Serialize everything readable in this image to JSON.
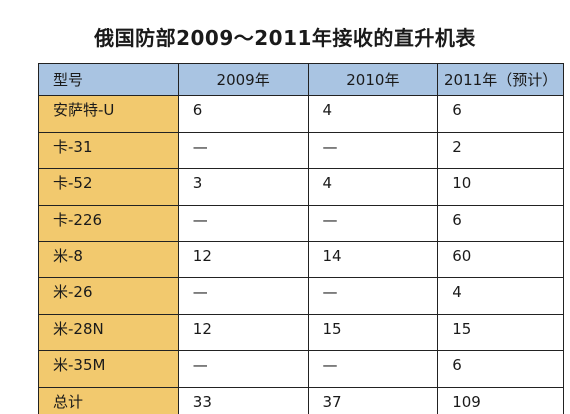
{
  "title": "俄国防部2009～2011年接收的直升机表",
  "table": {
    "headers": [
      "型号",
      "2009年",
      "2010年",
      "2011年（预计）"
    ],
    "rows": [
      [
        "安萨特-U",
        "6",
        "4",
        "6"
      ],
      [
        "卡-31",
        "—",
        "—",
        "2"
      ],
      [
        "卡-52",
        "3",
        "4",
        "10"
      ],
      [
        "卡-226",
        "—",
        "—",
        "6"
      ],
      [
        "米-8",
        "12",
        "14",
        "60"
      ],
      [
        "米-26",
        "—",
        "—",
        "4"
      ],
      [
        "米-28N",
        "12",
        "15",
        "15"
      ],
      [
        "米-35M",
        "—",
        "—",
        "6"
      ],
      [
        "总计",
        "33",
        "37",
        "109"
      ]
    ]
  },
  "colors": {
    "header_bg": "#a9c4e2",
    "model_col_bg": "#f2c96e",
    "border": "#222222"
  }
}
